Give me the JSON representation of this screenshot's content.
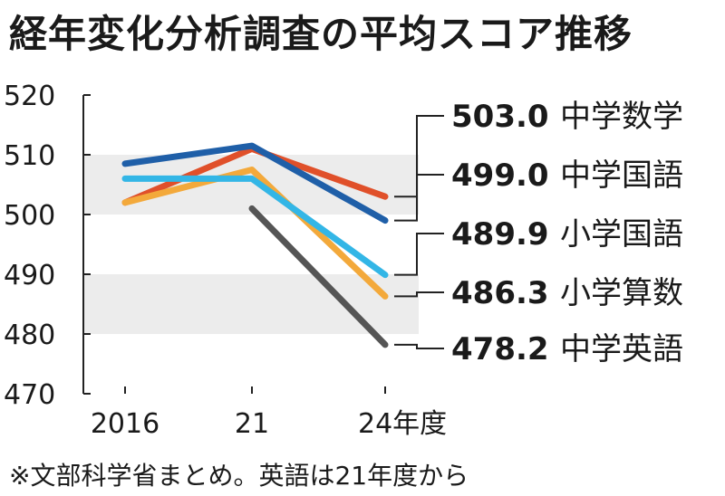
{
  "title": "経年変化分析調査の平均スコア推移",
  "note": "※文部科学省まとめ。英語は21年度から",
  "chart_data": {
    "type": "line",
    "title": "経年変化分析調査の平均スコア推移",
    "categories": [
      "2016",
      "21",
      "24年度"
    ],
    "ylim": [
      470,
      520
    ],
    "yticks": [
      470,
      480,
      490,
      500,
      510,
      520
    ],
    "bands": [
      [
        500,
        510
      ],
      [
        480,
        490
      ]
    ],
    "series": [
      {
        "name": "中学数学",
        "values": [
          502,
          511,
          503.0
        ],
        "label": "503.0",
        "color": "#e0502a"
      },
      {
        "name": "中学国語",
        "values": [
          508.5,
          511.5,
          499.0
        ],
        "label": "499.0",
        "color": "#1f5fa8"
      },
      {
        "name": "小学国語",
        "values": [
          506,
          506,
          489.9
        ],
        "label": "489.9",
        "color": "#33b6e6"
      },
      {
        "name": "小学算数",
        "values": [
          502,
          507.5,
          486.3
        ],
        "label": "486.3",
        "color": "#f3a93b"
      },
      {
        "name": "中学英語",
        "values": [
          null,
          501,
          478.2
        ],
        "label": "478.2",
        "color": "#555555"
      }
    ]
  }
}
